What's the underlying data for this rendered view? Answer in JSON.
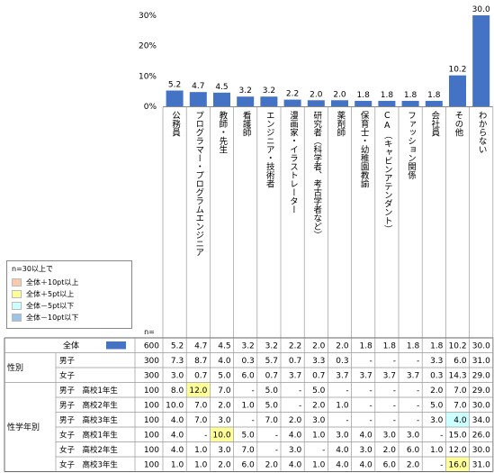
{
  "chart_data": {
    "type": "bar",
    "ylim": [
      0,
      30
    ],
    "yticks": [
      "30%",
      "20%",
      "10%",
      "0%"
    ],
    "grid": false,
    "n_label": "n=",
    "categories": [
      "公務員",
      "プログラマー・プログラムエンジニア",
      "教師・先生",
      "看護師",
      "エンジニア・技術者",
      "漫画家・イラストレーター",
      "研究者（科学者、考古学者など）",
      "薬剤師",
      "保育士・幼稚園教諭",
      "CA（キャビンアテンダント）",
      "ファッション関係",
      "会社員",
      "その他",
      "わからない"
    ],
    "values": [
      5.2,
      4.7,
      4.5,
      3.2,
      3.2,
      2.2,
      2.0,
      2.0,
      1.8,
      1.8,
      1.8,
      1.8,
      10.2,
      30.0
    ],
    "value_labels": [
      "5.2",
      "4.7",
      "4.5",
      "3.2",
      "3.2",
      "2.2",
      "2.0",
      "2.0",
      "1.8",
      "1.8",
      "1.8",
      "1.8",
      "10.2",
      "30.0"
    ],
    "bar_color": "#4472c4",
    "legend": {
      "title": "n=30以上で",
      "items": [
        {
          "label": "全体＋10pt以上",
          "color": "#f8cbad"
        },
        {
          "label": "全体＋5pt以上",
          "color": "#ffff99"
        },
        {
          "label": "全体－5pt以下",
          "color": "#ccffff"
        },
        {
          "label": "全体－10pt以下",
          "color": "#9dc3e6"
        }
      ]
    },
    "table": {
      "rows": [
        {
          "group": "",
          "label": "全体",
          "n": "600",
          "total": true,
          "cells": [
            "5.2",
            "4.7",
            "4.5",
            "3.2",
            "3.2",
            "2.2",
            "2.0",
            "2.0",
            "1.8",
            "1.8",
            "1.8",
            "1.8",
            "10.2",
            "30.0"
          ]
        },
        {
          "group": "性別",
          "label": "男子",
          "n": "300",
          "cells": [
            "7.3",
            "8.7",
            "4.0",
            "0.3",
            "5.7",
            "0.7",
            "3.3",
            "0.3",
            "-",
            "-",
            "-",
            "3.3",
            "6.0",
            "31.0"
          ]
        },
        {
          "group": "",
          "label": "女子",
          "n": "300",
          "cells": [
            "3.0",
            "0.7",
            "5.0",
            "6.0",
            "0.7",
            "3.7",
            "0.7",
            "3.7",
            "3.7",
            "3.7",
            "3.7",
            "0.3",
            "14.3",
            "29.0"
          ]
        },
        {
          "group": "性学年別",
          "label": "男子　高校1年生",
          "n": "100",
          "cells": [
            "8.0",
            "12.0",
            "7.0",
            "-",
            "5.0",
            "-",
            "5.0",
            "-",
            "-",
            "-",
            "-",
            "2.0",
            "7.0",
            "29.0"
          ]
        },
        {
          "group": "",
          "label": "男子　高校2年生",
          "n": "100",
          "cells": [
            "10.0",
            "7.0",
            "2.0",
            "1.0",
            "5.0",
            "-",
            "2.0",
            "1.0",
            "-",
            "-",
            "-",
            "5.0",
            "7.0",
            "30.0"
          ]
        },
        {
          "group": "",
          "label": "男子　高校3年生",
          "n": "100",
          "cells": [
            "4.0",
            "7.0",
            "3.0",
            "-",
            "7.0",
            "2.0",
            "3.0",
            "-",
            "-",
            "-",
            "-",
            "3.0",
            "4.0",
            "34.0"
          ]
        },
        {
          "group": "",
          "label": "女子　高校1年生",
          "n": "100",
          "cells": [
            "4.0",
            "-",
            "10.0",
            "5.0",
            "-",
            "4.0",
            "1.0",
            "3.0",
            "4.0",
            "3.0",
            "3.0",
            "-",
            "15.0",
            "26.0"
          ]
        },
        {
          "group": "",
          "label": "女子　高校2年生",
          "n": "100",
          "cells": [
            "4.0",
            "1.0",
            "3.0",
            "7.0",
            "-",
            "3.0",
            "-",
            "4.0",
            "3.0",
            "2.0",
            "6.0",
            "1.0",
            "12.0",
            "30.0"
          ]
        },
        {
          "group": "",
          "label": "女子　高校3年生",
          "n": "100",
          "cells": [
            "1.0",
            "1.0",
            "2.0",
            "6.0",
            "2.0",
            "4.0",
            "1.0",
            "4.0",
            "4.0",
            "6.0",
            "2.0",
            "-",
            "16.0",
            "31.0"
          ]
        }
      ],
      "highlights": [
        {
          "row": 3,
          "col": 1,
          "color": "#ffff99"
        },
        {
          "row": 5,
          "col": 12,
          "color": "#ccffff"
        },
        {
          "row": 6,
          "col": 2,
          "color": "#ffff99"
        },
        {
          "row": 8,
          "col": 12,
          "color": "#ffff99"
        }
      ]
    }
  }
}
